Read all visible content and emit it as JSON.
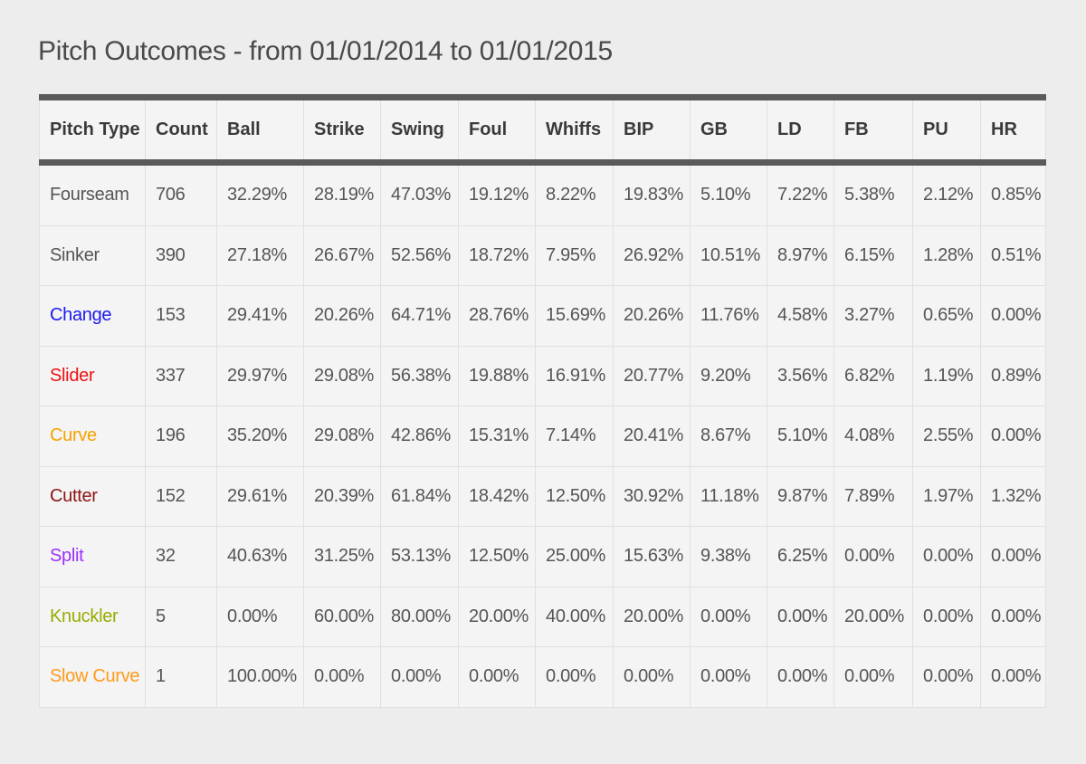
{
  "page": {
    "title": "Pitch Outcomes - from 01/01/2014 to 01/01/2015"
  },
  "table": {
    "columns": [
      "Pitch Type",
      "Count",
      "Ball",
      "Strike",
      "Swing",
      "Foul",
      "Whiffs",
      "BIP",
      "GB",
      "LD",
      "FB",
      "PU",
      "HR"
    ],
    "rows": [
      {
        "pitch_type": "Fourseam",
        "color": "#555555",
        "values": [
          "706",
          "32.29%",
          "28.19%",
          "47.03%",
          "19.12%",
          "8.22%",
          "19.83%",
          "5.10%",
          "7.22%",
          "5.38%",
          "2.12%",
          "0.85%"
        ]
      },
      {
        "pitch_type": "Sinker",
        "color": "#555555",
        "values": [
          "390",
          "27.18%",
          "26.67%",
          "52.56%",
          "18.72%",
          "7.95%",
          "26.92%",
          "10.51%",
          "8.97%",
          "6.15%",
          "1.28%",
          "0.51%"
        ]
      },
      {
        "pitch_type": "Change",
        "color": "#1a1aee",
        "values": [
          "153",
          "29.41%",
          "20.26%",
          "64.71%",
          "28.76%",
          "15.69%",
          "20.26%",
          "11.76%",
          "4.58%",
          "3.27%",
          "0.65%",
          "0.00%"
        ]
      },
      {
        "pitch_type": "Slider",
        "color": "#ee1111",
        "values": [
          "337",
          "29.97%",
          "29.08%",
          "56.38%",
          "19.88%",
          "16.91%",
          "20.77%",
          "9.20%",
          "3.56%",
          "6.82%",
          "1.19%",
          "0.89%"
        ]
      },
      {
        "pitch_type": "Curve",
        "color": "#f5a300",
        "values": [
          "196",
          "35.20%",
          "29.08%",
          "42.86%",
          "15.31%",
          "7.14%",
          "20.41%",
          "8.67%",
          "5.10%",
          "4.08%",
          "2.55%",
          "0.00%"
        ]
      },
      {
        "pitch_type": "Cutter",
        "color": "#8b1414",
        "values": [
          "152",
          "29.61%",
          "20.39%",
          "61.84%",
          "18.42%",
          "12.50%",
          "30.92%",
          "11.18%",
          "9.87%",
          "7.89%",
          "1.97%",
          "1.32%"
        ]
      },
      {
        "pitch_type": "Split",
        "color": "#9b30ff",
        "values": [
          "32",
          "40.63%",
          "31.25%",
          "53.13%",
          "12.50%",
          "25.00%",
          "15.63%",
          "9.38%",
          "6.25%",
          "0.00%",
          "0.00%",
          "0.00%"
        ]
      },
      {
        "pitch_type": "Knuckler",
        "color": "#9aab00",
        "values": [
          "5",
          "0.00%",
          "60.00%",
          "80.00%",
          "20.00%",
          "40.00%",
          "20.00%",
          "0.00%",
          "0.00%",
          "20.00%",
          "0.00%",
          "0.00%"
        ]
      },
      {
        "pitch_type": "Slow Curve",
        "color": "#ff9a1a",
        "values": [
          "1",
          "100.00%",
          "0.00%",
          "0.00%",
          "0.00%",
          "0.00%",
          "0.00%",
          "0.00%",
          "0.00%",
          "0.00%",
          "0.00%",
          "0.00%"
        ]
      }
    ]
  }
}
